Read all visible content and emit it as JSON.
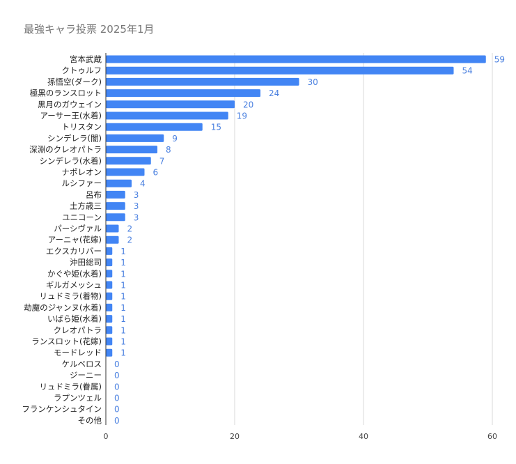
{
  "chart_data": {
    "type": "bar",
    "orientation": "horizontal",
    "title": "最強キャラ投票 2025年1月",
    "xlabel": "",
    "ylabel": "",
    "xlim": [
      0,
      60
    ],
    "x_ticks": [
      0,
      20,
      40,
      60
    ],
    "grid": true,
    "legend": "none",
    "bar_color": "#4285f4",
    "label_color": "#4a80e0",
    "categories": [
      "宮本武蔵",
      "クトゥルフ",
      "孫悟空(ダーク)",
      "極黒のランスロット",
      "黒月のガウェイン",
      "アーサー王(水着)",
      "トリスタン",
      "シンデレラ(闇)",
      "深淵のクレオパトラ",
      "シンデレラ(水着)",
      "ナポレオン",
      "ルシファー",
      "呂布",
      "土方歳三",
      "ユニコーン",
      "パーシヴァル",
      "アーニャ(花嫁)",
      "エクスカリバー",
      "沖田総司",
      "かぐや姫(水着)",
      "ギルガメッシュ",
      "リュドミラ(着物)",
      "劫魔のジャンヌ(水着)",
      "いばら姫(水着)",
      "クレオパトラ",
      "ランスロット(花嫁)",
      "モードレッド",
      "ケルベロス",
      "ジーニー",
      "リュドミラ(眷属)",
      "ラプンツェル",
      "フランケンシュタイン",
      "その他"
    ],
    "values": [
      59,
      54,
      30,
      24,
      20,
      19,
      15,
      9,
      8,
      7,
      6,
      4,
      3,
      3,
      3,
      2,
      2,
      1,
      1,
      1,
      1,
      1,
      1,
      1,
      1,
      1,
      1,
      0,
      0,
      0,
      0,
      0,
      0
    ]
  }
}
